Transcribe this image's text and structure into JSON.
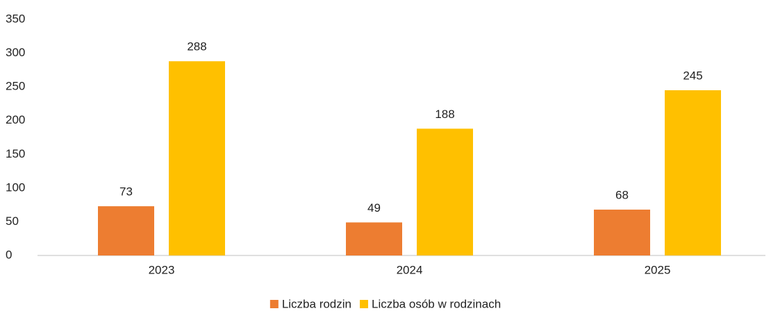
{
  "chart_data": {
    "type": "bar",
    "categories": [
      "2023",
      "2024",
      "2025"
    ],
    "series": [
      {
        "name": "Liczba rodzin",
        "color": "#ed7d31",
        "values": [
          73,
          49,
          68
        ]
      },
      {
        "name": "Liczba osób w rodzinach",
        "color": "#ffc000",
        "values": [
          288,
          188,
          245
        ]
      }
    ],
    "ylim": [
      0,
      350
    ],
    "yticks": [
      0,
      50,
      100,
      150,
      200,
      250,
      300,
      350
    ],
    "grid": false,
    "legend": "bottom"
  }
}
